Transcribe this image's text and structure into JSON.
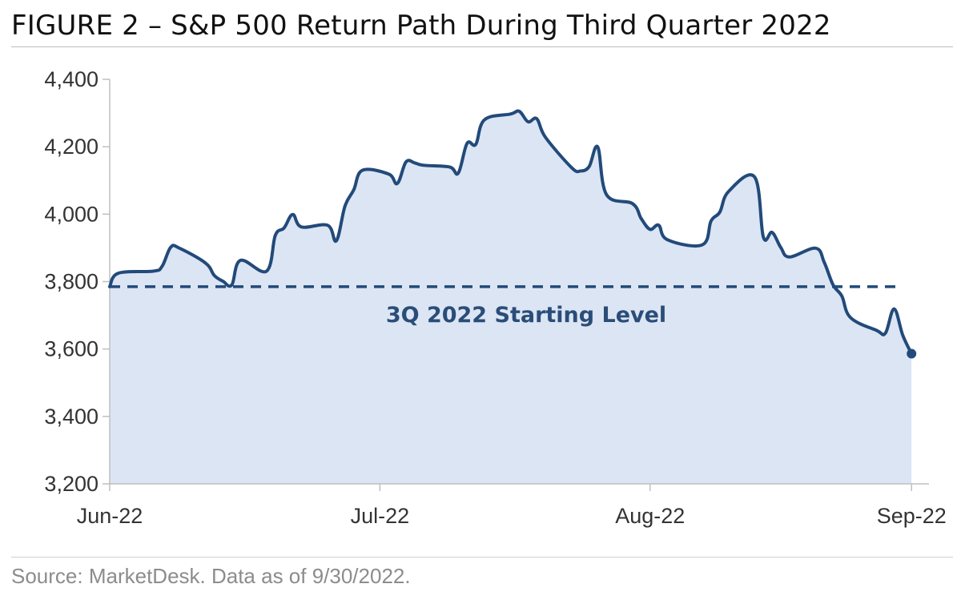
{
  "title": "FIGURE 2 – S&P 500 Return Path During Third Quarter 2022",
  "source": "Source: MarketDesk. Data as of 9/30/2022.",
  "colors": {
    "line": "#224a7a",
    "fill": "#dce5f4",
    "axis": "#bfbfbf",
    "annotation": "#2a4d78"
  },
  "chart_data": {
    "type": "area",
    "title": "FIGURE 2 – S&P 500 Return Path During Third Quarter 2022",
    "xlabel": "",
    "ylabel": "",
    "ylim": [
      3200,
      4400
    ],
    "yticks": [
      3200,
      3400,
      3600,
      3800,
      4000,
      4200,
      4400
    ],
    "ytick_labels": [
      "3,200",
      "3,400",
      "3,600",
      "3,800",
      "4,000",
      "4,200",
      "4,400"
    ],
    "xticks": [
      "2022-06-30",
      "2022-07-31",
      "2022-08-31",
      "2022-09-30"
    ],
    "xtick_labels": [
      "Jun-22",
      "Jul-22",
      "Aug-22",
      "Sep-22"
    ],
    "xlim": [
      "2022-06-30",
      "2022-10-02"
    ],
    "grid": false,
    "reference_line": {
      "value": 3785,
      "style": "dashed",
      "label": "3Q 2022 Starting Level"
    },
    "series": [
      {
        "x": [
          "2022-06-30",
          "2022-07-01",
          "2022-07-05",
          "2022-07-06",
          "2022-07-07",
          "2022-07-08",
          "2022-07-11",
          "2022-07-12",
          "2022-07-13",
          "2022-07-14",
          "2022-07-15",
          "2022-07-18",
          "2022-07-19",
          "2022-07-20",
          "2022-07-21",
          "2022-07-22",
          "2022-07-25",
          "2022-07-26",
          "2022-07-27",
          "2022-07-28",
          "2022-07-29",
          "2022-08-01",
          "2022-08-02",
          "2022-08-03",
          "2022-08-04",
          "2022-08-05",
          "2022-08-08",
          "2022-08-09",
          "2022-08-10",
          "2022-08-11",
          "2022-08-12",
          "2022-08-15",
          "2022-08-16",
          "2022-08-17",
          "2022-08-18",
          "2022-08-19",
          "2022-08-22",
          "2022-08-23",
          "2022-08-24",
          "2022-08-25",
          "2022-08-26",
          "2022-08-29",
          "2022-08-30",
          "2022-08-31",
          "2022-09-01",
          "2022-09-02",
          "2022-09-06",
          "2022-09-07",
          "2022-09-08",
          "2022-09-09",
          "2022-09-12",
          "2022-09-13",
          "2022-09-14",
          "2022-09-15",
          "2022-09-16",
          "2022-09-19",
          "2022-09-20",
          "2022-09-21",
          "2022-09-22",
          "2022-09-23",
          "2022-09-26",
          "2022-09-27",
          "2022-09-28",
          "2022-09-29",
          "2022-09-30"
        ],
        "values": [
          3785,
          3825,
          3831,
          3845,
          3902,
          3899,
          3855,
          3818,
          3801,
          3790,
          3863,
          3831,
          3937,
          3959,
          3999,
          3962,
          3967,
          3921,
          4024,
          4072,
          4130,
          4119,
          4091,
          4155,
          4152,
          4145,
          4140,
          4122,
          4210,
          4207,
          4280,
          4297,
          4305,
          4274,
          4283,
          4228,
          4138,
          4128,
          4141,
          4199,
          4058,
          4031,
          3986,
          3955,
          3967,
          3924,
          3909,
          3980,
          4006,
          4067,
          4110,
          3932,
          3946,
          3901,
          3873,
          3899,
          3856,
          3790,
          3757,
          3693,
          3655,
          3647,
          3719,
          3640,
          3586
        ]
      }
    ]
  }
}
